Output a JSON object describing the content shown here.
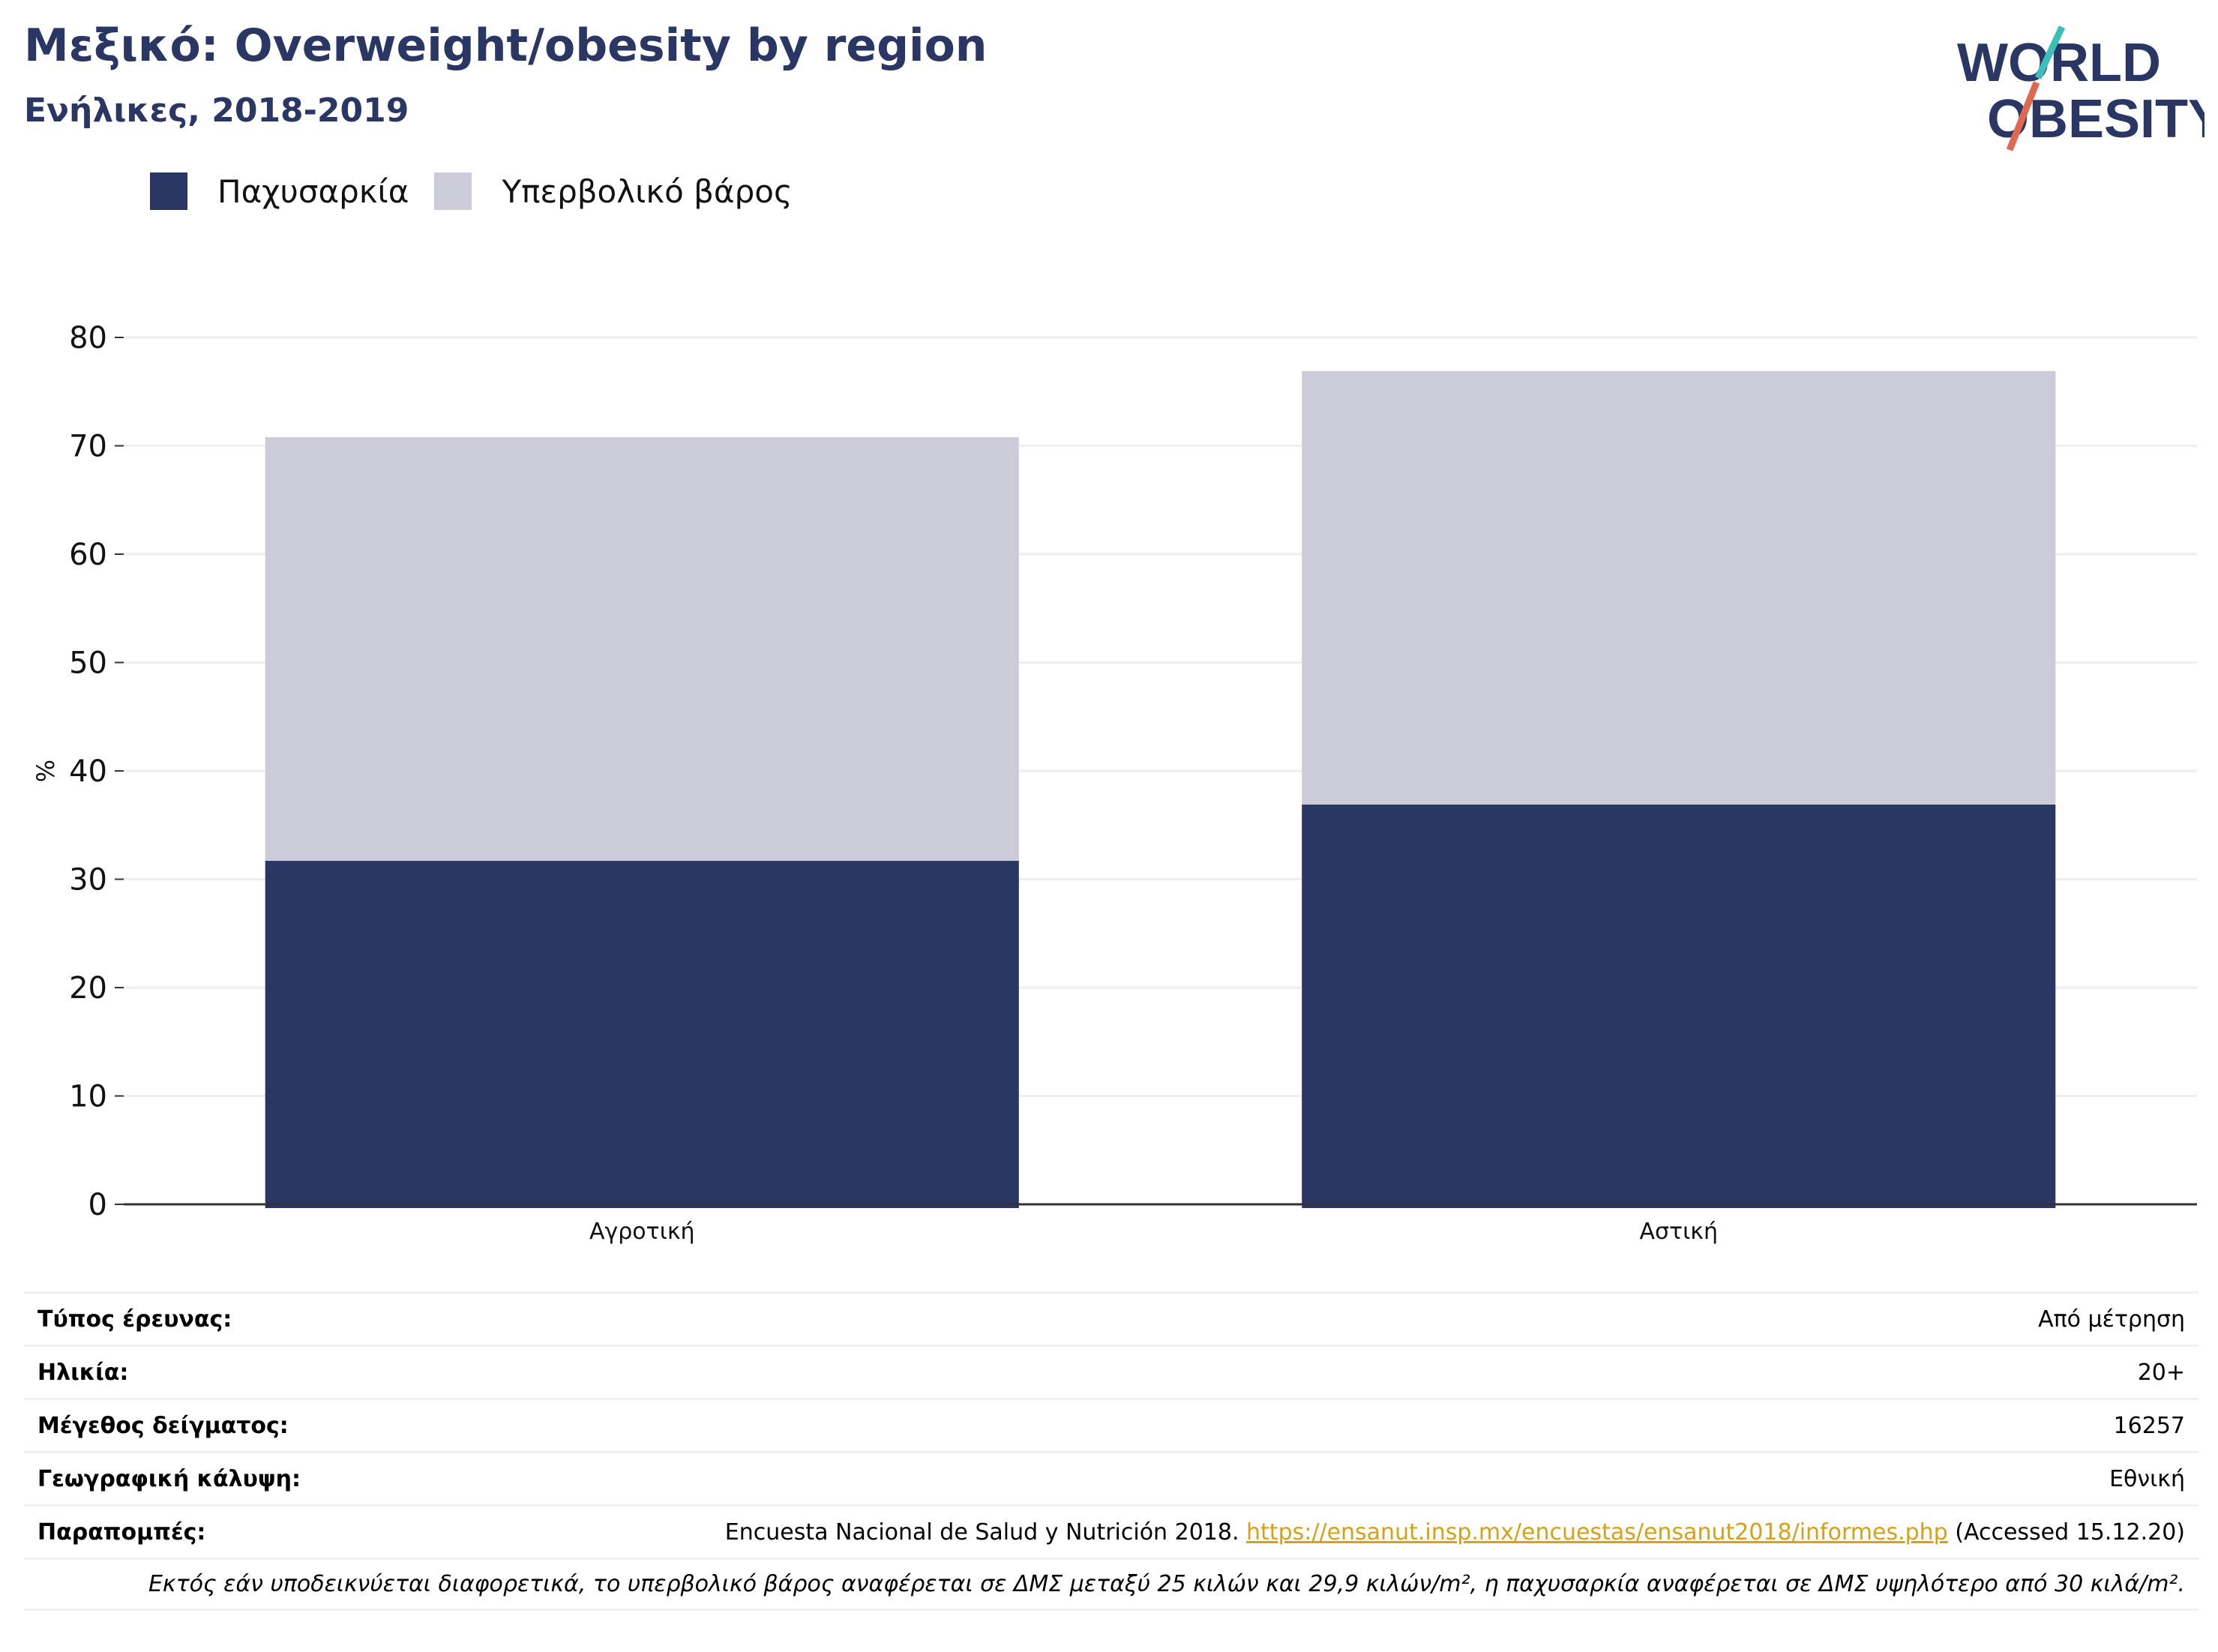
{
  "header": {
    "title": "Μεξικό: Overweight/obesity by region",
    "subtitle": "Ενήλικες, 2018-2019"
  },
  "logo": {
    "line1": "WORLD",
    "line2": "OBESITY"
  },
  "colors": {
    "obesity": "#2a3663",
    "overweight": "#cbccd8",
    "accent": "#d9a016",
    "logo_slash_teal": "#3bbfb6",
    "logo_slash_red": "#e2674f"
  },
  "chart_data": {
    "type": "bar",
    "stacked": true,
    "categories": [
      "Αγροτική",
      "Αστική"
    ],
    "series": [
      {
        "name": "Παχυσαρκία",
        "values": [
          31.7,
          36.9
        ]
      },
      {
        "name": "Υπερβολικό βάρος",
        "values": [
          39.1,
          40.0
        ]
      }
    ],
    "ylabel": "%",
    "ylim": [
      0,
      80
    ],
    "yticks": [
      0,
      10,
      20,
      30,
      40,
      50,
      60,
      70,
      80
    ],
    "grid": true,
    "legend": "top-left"
  },
  "info": {
    "rows": [
      {
        "label": "Τύπος έρευνας:",
        "value": "Από μέτρηση"
      },
      {
        "label": "Ηλικία:",
        "value": "20+"
      },
      {
        "label": "Μέγεθος δείγματος:",
        "value": "16257"
      },
      {
        "label": "Γεωγραφική κάλυψη:",
        "value": "Εθνική"
      }
    ],
    "references": {
      "label": "Παραπομπές:",
      "text_before": "Encuesta Nacional de Salud y Nutrición 2018. ",
      "link": "https://ensanut.insp.mx/encuestas/ensanut2018/informes.php",
      "text_after": " (Accessed 15.12.20)"
    },
    "note": "Εκτός εάν υποδεικνύεται διαφορετικά, το υπερβολικό βάρος αναφέρεται σε ΔΜΣ μεταξύ 25 κιλών και 29,9 κιλών/m², η παχυσαρκία αναφέρεται σε ΔΜΣ υψηλότερο από 30 κιλά/m²."
  }
}
